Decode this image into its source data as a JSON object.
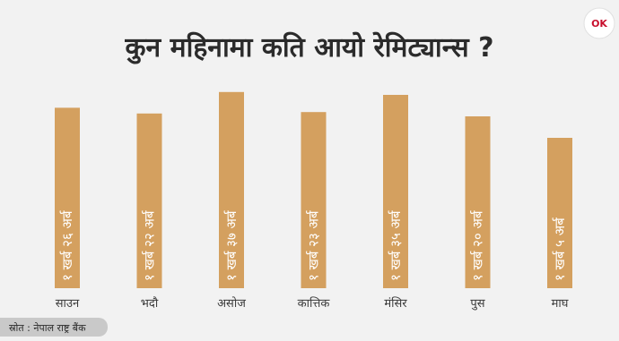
{
  "chart_data": {
    "type": "bar",
    "title": "कुन महिनामा कति आयो रेमिट्यान्स ?",
    "categories": [
      "साउन",
      "भदौ",
      "असोज",
      "कात्तिक",
      "मंसिर",
      "पुस",
      "माघ"
    ],
    "values": [
      126,
      122,
      137,
      123,
      135,
      120,
      105
    ],
    "value_labels": [
      "१ खर्ब २६ अर्ब",
      "१ खर्ब २२ अर्ब",
      "१ खर्ब ३७ अर्ब",
      "१ खर्ब २३ अर्ब",
      "१ खर्ब ३५ अर्ब",
      "१ खर्ब २० अर्ब",
      "१ खर्ब ५ अर्ब"
    ],
    "ylim": [
      0,
      145
    ],
    "grid": false,
    "bar_color": "#d4a05f"
  },
  "source": "स्रोत : नेपाल राष्ट्र बैंक",
  "logo": {
    "text": "OK",
    "colors": {
      "o": "#c8102e",
      "k": "#1f3a93"
    }
  }
}
